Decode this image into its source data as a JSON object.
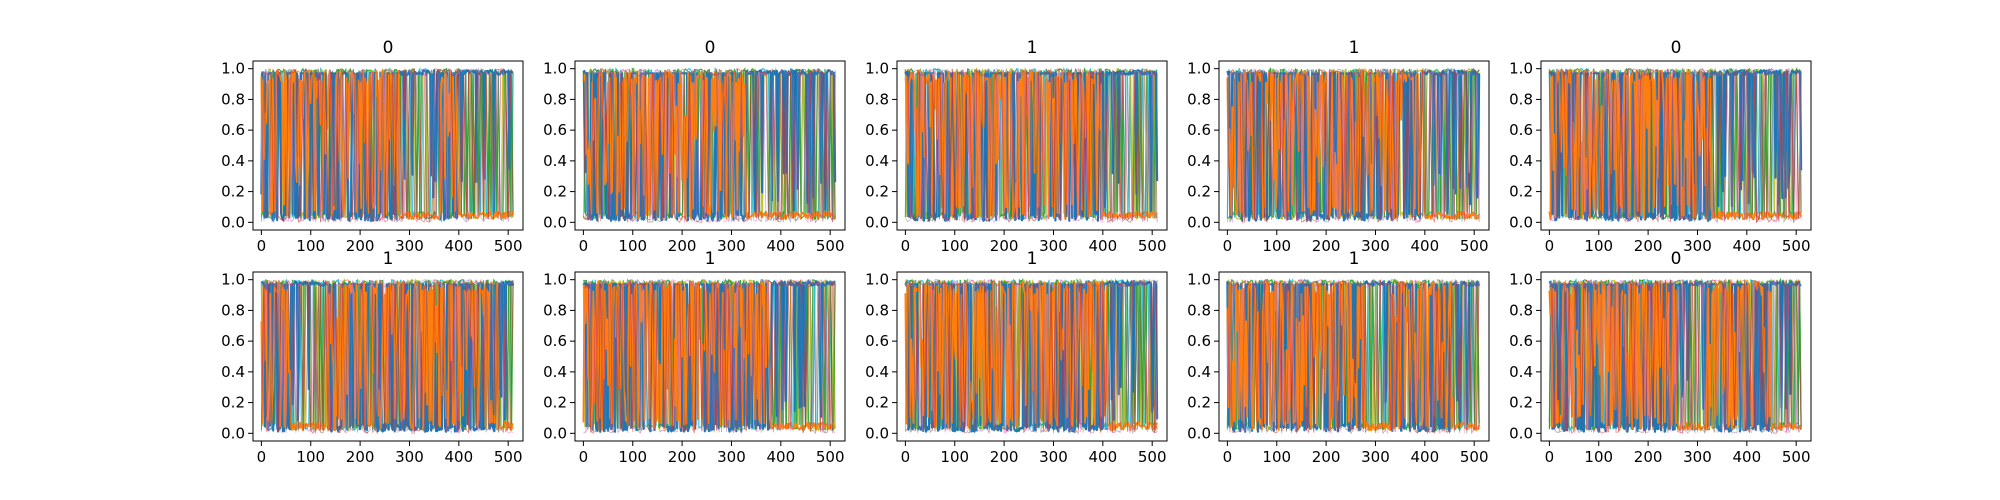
{
  "chart_data": [
    {
      "type": "line",
      "title": "0",
      "xlim": [
        -17,
        530
      ],
      "ylim": [
        -0.05,
        1.05
      ],
      "xticks": [
        "0",
        "100",
        "200",
        "300",
        "400",
        "500"
      ],
      "yticks": [
        "0.0",
        "0.2",
        "0.4",
        "0.6",
        "0.8",
        "1.0"
      ],
      "x_range": [
        0,
        511
      ],
      "series": [
        {
          "color": "#1f77b4",
          "segments": [
            [
              0,
              5,
              0.95
            ],
            [
              280,
              360,
              0.95
            ],
            [
              400,
              511,
              0.95
            ]
          ]
        },
        {
          "color": "#ff7f0e",
          "segments": [
            [
              0,
              280,
              0.55
            ],
            [
              280,
              360,
              0.04
            ],
            [
              360,
              400,
              0.35
            ],
            [
              400,
              511,
              0.03
            ]
          ]
        }
      ]
    },
    {
      "type": "line",
      "title": "0",
      "xlim": [
        -17,
        530
      ],
      "ylim": [
        -0.05,
        1.05
      ],
      "xticks": [
        "0",
        "100",
        "200",
        "300",
        "400",
        "500"
      ],
      "yticks": [
        "0.0",
        "0.2",
        "0.4",
        "0.6",
        "0.8",
        "1.0"
      ],
      "x_range": [
        0,
        511
      ],
      "series": [
        {
          "color": "#1f77b4",
          "segments": [
            [
              0,
              5,
              0.95
            ],
            [
              330,
              511,
              0.95
            ]
          ]
        },
        {
          "color": "#ff7f0e",
          "segments": [
            [
              0,
              330,
              0.55
            ],
            [
              330,
              511,
              0.03
            ]
          ]
        }
      ]
    },
    {
      "type": "line",
      "title": "1",
      "xlim": [
        -17,
        530
      ],
      "ylim": [
        -0.05,
        1.05
      ],
      "xticks": [
        "0",
        "100",
        "200",
        "300",
        "400",
        "500"
      ],
      "yticks": [
        "0.0",
        "0.2",
        "0.4",
        "0.6",
        "0.8",
        "1.0"
      ],
      "x_range": [
        0,
        511
      ],
      "series": [
        {
          "color": "#1f77b4",
          "segments": [
            [
              0,
              5,
              0.95
            ],
            [
              400,
              511,
              0.95
            ]
          ]
        },
        {
          "color": "#ff7f0e",
          "segments": [
            [
              0,
              400,
              0.55
            ],
            [
              400,
              511,
              0.05
            ]
          ]
        }
      ]
    },
    {
      "type": "line",
      "title": "1",
      "xlim": [
        -17,
        530
      ],
      "ylim": [
        -0.05,
        1.05
      ],
      "xticks": [
        "0",
        "100",
        "200",
        "300",
        "400",
        "500"
      ],
      "yticks": [
        "0.0",
        "0.2",
        "0.4",
        "0.6",
        "0.8",
        "1.0"
      ],
      "x_range": [
        0,
        511
      ],
      "series": [
        {
          "color": "#1f77b4",
          "segments": [
            [
              0,
              5,
              0.95
            ],
            [
              400,
              511,
              0.95
            ]
          ]
        },
        {
          "color": "#ff7f0e",
          "segments": [
            [
              0,
              400,
              0.55
            ],
            [
              400,
              511,
              0.03
            ]
          ]
        }
      ]
    },
    {
      "type": "line",
      "title": "0",
      "xlim": [
        -17,
        530
      ],
      "ylim": [
        -0.05,
        1.05
      ],
      "xticks": [
        "0",
        "100",
        "200",
        "300",
        "400",
        "500"
      ],
      "yticks": [
        "0.0",
        "0.2",
        "0.4",
        "0.6",
        "0.8",
        "1.0"
      ],
      "x_range": [
        0,
        511
      ],
      "series": [
        {
          "color": "#1f77b4",
          "segments": [
            [
              0,
              5,
              0.95
            ],
            [
              330,
              511,
              0.95
            ]
          ]
        },
        {
          "color": "#ff7f0e",
          "segments": [
            [
              0,
              330,
              0.55
            ],
            [
              330,
              511,
              0.03
            ]
          ]
        }
      ]
    },
    {
      "type": "line",
      "title": "1",
      "xlim": [
        -17,
        530
      ],
      "ylim": [
        -0.05,
        1.05
      ],
      "xticks": [
        "0",
        "100",
        "200",
        "300",
        "400",
        "500"
      ],
      "yticks": [
        "0.0",
        "0.2",
        "0.4",
        "0.6",
        "0.8",
        "1.0"
      ],
      "x_range": [
        0,
        511
      ],
      "series": [
        {
          "color": "#1f77b4",
          "segments": [
            [
              0,
              5,
              0.95
            ],
            [
              60,
              130,
              0.95
            ],
            [
              480,
              511,
              0.95
            ]
          ]
        },
        {
          "color": "#ff7f0e",
          "segments": [
            [
              0,
              60,
              0.5
            ],
            [
              60,
              130,
              0.05
            ],
            [
              130,
              480,
              0.55
            ],
            [
              480,
              511,
              0.05
            ]
          ]
        }
      ]
    },
    {
      "type": "line",
      "title": "1",
      "xlim": [
        -17,
        530
      ],
      "ylim": [
        -0.05,
        1.05
      ],
      "xticks": [
        "0",
        "100",
        "200",
        "300",
        "400",
        "500"
      ],
      "yticks": [
        "0.0",
        "0.2",
        "0.4",
        "0.6",
        "0.8",
        "1.0"
      ],
      "x_range": [
        0,
        511
      ],
      "series": [
        {
          "color": "#1f77b4",
          "segments": [
            [
              0,
              5,
              0.95
            ],
            [
              380,
              511,
              0.95
            ]
          ]
        },
        {
          "color": "#ff7f0e",
          "segments": [
            [
              0,
              380,
              0.55
            ],
            [
              380,
              511,
              0.03
            ]
          ]
        }
      ]
    },
    {
      "type": "line",
      "title": "1",
      "xlim": [
        -17,
        530
      ],
      "ylim": [
        -0.05,
        1.05
      ],
      "xticks": [
        "0",
        "100",
        "200",
        "300",
        "400",
        "500"
      ],
      "yticks": [
        "0.0",
        "0.2",
        "0.4",
        "0.6",
        "0.8",
        "1.0"
      ],
      "x_range": [
        0,
        511
      ],
      "series": [
        {
          "color": "#1f77b4",
          "segments": [
            [
              0,
              5,
              0.95
            ],
            [
              410,
              511,
              0.95
            ]
          ]
        },
        {
          "color": "#ff7f0e",
          "segments": [
            [
              0,
              410,
              0.55
            ],
            [
              410,
              511,
              0.04
            ]
          ]
        }
      ]
    },
    {
      "type": "line",
      "title": "1",
      "xlim": [
        -17,
        530
      ],
      "ylim": [
        -0.05,
        1.05
      ],
      "xticks": [
        "0",
        "100",
        "200",
        "300",
        "400",
        "500"
      ],
      "yticks": [
        "0.0",
        "0.2",
        "0.4",
        "0.6",
        "0.8",
        "1.0"
      ],
      "x_range": [
        0,
        511
      ],
      "series": [
        {
          "color": "#1f77b4",
          "segments": [
            [
              0,
              5,
              0.95
            ],
            [
              280,
              330,
              0.95
            ],
            [
              460,
              511,
              0.95
            ]
          ]
        },
        {
          "color": "#ff7f0e",
          "segments": [
            [
              0,
              280,
              0.55
            ],
            [
              280,
              330,
              0.05
            ],
            [
              330,
              460,
              0.6
            ],
            [
              460,
              511,
              0.05
            ]
          ]
        }
      ]
    },
    {
      "type": "line",
      "title": "0",
      "xlim": [
        -17,
        530
      ],
      "ylim": [
        -0.05,
        1.05
      ],
      "xticks": [
        "0",
        "100",
        "200",
        "300",
        "400",
        "500"
      ],
      "yticks": [
        "0.0",
        "0.2",
        "0.4",
        "0.6",
        "0.8",
        "1.0"
      ],
      "x_range": [
        0,
        511
      ],
      "series": [
        {
          "color": "#1f77b4",
          "segments": [
            [
              0,
              5,
              0.95
            ],
            [
              260,
              320,
              0.95
            ],
            [
              450,
              511,
              0.95
            ]
          ]
        },
        {
          "color": "#ff7f0e",
          "segments": [
            [
              0,
              260,
              0.55
            ],
            [
              260,
              320,
              0.05
            ],
            [
              320,
              450,
              0.6
            ],
            [
              450,
              511,
              0.04
            ]
          ]
        }
      ]
    }
  ],
  "colors": {
    "noise": [
      "#17becf",
      "#bcbd22",
      "#2ca02c",
      "#9467bd",
      "#e377c2",
      "#8c564b",
      "#d62728",
      "#7f7f7f"
    ]
  }
}
